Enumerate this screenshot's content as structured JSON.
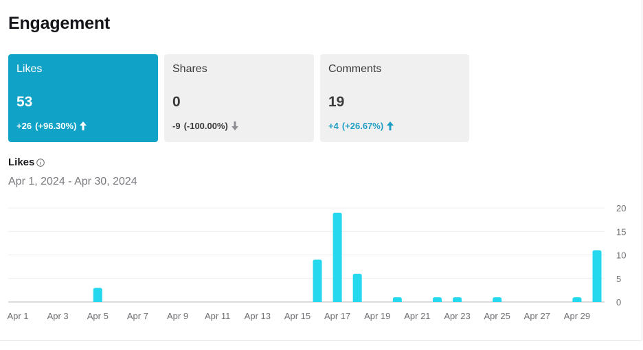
{
  "header": {
    "title": "Engagement"
  },
  "cards": [
    {
      "label": "Likes",
      "value": "53",
      "delta": "+26",
      "percent": "(+96.30%)",
      "direction": "up",
      "active": true
    },
    {
      "label": "Shares",
      "value": "0",
      "delta": "-9",
      "percent": "(-100.00%)",
      "direction": "down",
      "active": false
    },
    {
      "label": "Comments",
      "value": "19",
      "delta": "+4",
      "percent": "(+26.67%)",
      "direction": "up",
      "active": false
    }
  ],
  "chart_section": {
    "title": "Likes",
    "date_range": "Apr 1, 2024 - Apr 30, 2024"
  },
  "colors": {
    "bar": "#25d8ee",
    "active_card": "#11a3c7",
    "up": "#1f9ec3",
    "down": "#8e8e93",
    "grid": "#ececee",
    "axis_text": "#6e6e73"
  },
  "chart_data": {
    "type": "bar",
    "title": "Likes",
    "xlabel": "",
    "ylabel": "",
    "categories": [
      "Apr 1",
      "Apr 2",
      "Apr 3",
      "Apr 4",
      "Apr 5",
      "Apr 6",
      "Apr 7",
      "Apr 8",
      "Apr 9",
      "Apr 10",
      "Apr 11",
      "Apr 12",
      "Apr 13",
      "Apr 14",
      "Apr 15",
      "Apr 16",
      "Apr 17",
      "Apr 18",
      "Apr 19",
      "Apr 20",
      "Apr 21",
      "Apr 22",
      "Apr 23",
      "Apr 24",
      "Apr 25",
      "Apr 26",
      "Apr 27",
      "Apr 28",
      "Apr 29",
      "Apr 30"
    ],
    "values": [
      0,
      0,
      0,
      0,
      3,
      0,
      0,
      0,
      0,
      0,
      0,
      0,
      0,
      0,
      0,
      9,
      19,
      6,
      0,
      1,
      0,
      1,
      1,
      0,
      1,
      0,
      0,
      0,
      1,
      11
    ],
    "x_tick_labels": [
      "Apr 1",
      "Apr 3",
      "Apr 5",
      "Apr 7",
      "Apr 9",
      "Apr 11",
      "Apr 13",
      "Apr 15",
      "Apr 17",
      "Apr 19",
      "Apr 21",
      "Apr 23",
      "Apr 25",
      "Apr 27",
      "Apr 29"
    ],
    "y_ticks": [
      0,
      5,
      10,
      15,
      20
    ],
    "ylim": [
      0,
      20
    ],
    "grid": true,
    "y_axis_position": "right"
  }
}
